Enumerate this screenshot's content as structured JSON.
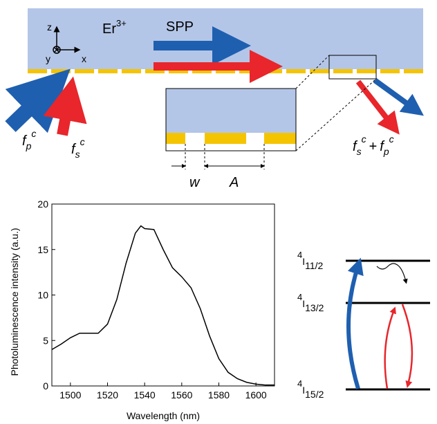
{
  "chart_data": {
    "type": "line",
    "xlabel": "Wavelength (nm)",
    "ylabel": "Photoluminescence intensity (a.u.)",
    "x": [
      1490,
      1495,
      1500,
      1505,
      1510,
      1515,
      1520,
      1525,
      1530,
      1535,
      1538,
      1540,
      1545,
      1550,
      1555,
      1560,
      1565,
      1570,
      1575,
      1580,
      1585,
      1590,
      1595,
      1600,
      1605,
      1610
    ],
    "values": [
      4.0,
      4.6,
      5.3,
      5.8,
      5.8,
      5.8,
      6.8,
      9.5,
      13.5,
      16.8,
      17.6,
      17.3,
      17.2,
      15.0,
      13.0,
      12.0,
      10.8,
      8.5,
      5.5,
      3.0,
      1.5,
      0.8,
      0.4,
      0.2,
      0.1,
      0.1
    ],
    "color": "#000000",
    "xlim": [
      1490,
      1610
    ],
    "xticks": [
      1500,
      1520,
      1540,
      1560,
      1580,
      1600
    ],
    "ylim": [
      0,
      20
    ],
    "yticks": [
      0,
      5,
      10,
      15,
      20
    ]
  },
  "diagram": {
    "medium": {
      "base": "Er",
      "sup": "3+"
    },
    "spp": "SPP",
    "axes": {
      "z": "z",
      "y": "y",
      "x": "x"
    },
    "pump": {
      "base": "f",
      "sub": "p",
      "sup": "c"
    },
    "signal": {
      "base": "f",
      "sub": "s",
      "sup": "c"
    },
    "output": {
      "operator": "+"
    },
    "inset": {
      "w": "w",
      "A": "A"
    },
    "levels": [
      {
        "sup": "4",
        "base": "I",
        "sub": "11/2"
      },
      {
        "sup": "4",
        "base": "I",
        "sub": "13/2"
      },
      {
        "sup": "4",
        "base": "I",
        "sub": "15/2"
      }
    ]
  }
}
